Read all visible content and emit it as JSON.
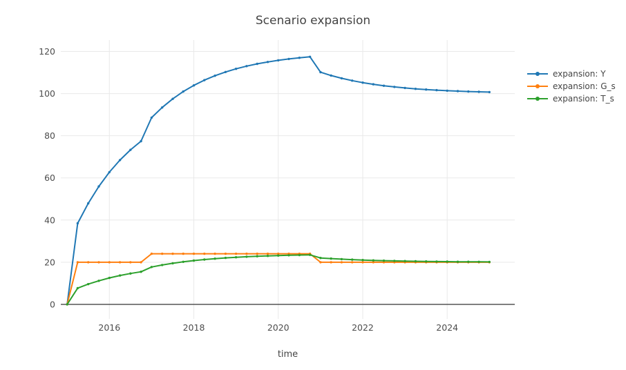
{
  "chart_data": {
    "type": "line",
    "mode": "lines+markers",
    "title": "Scenario expansion",
    "xlabel": "time",
    "ylabel": "",
    "x": [
      2015,
      2015.25,
      2015.5,
      2015.75,
      2016,
      2016.25,
      2016.5,
      2016.75,
      2017,
      2017.25,
      2017.5,
      2017.75,
      2018,
      2018.25,
      2018.5,
      2018.75,
      2019,
      2019.25,
      2019.5,
      2019.75,
      2020,
      2020.25,
      2020.5,
      2020.75,
      2021,
      2021.25,
      2021.5,
      2021.75,
      2022,
      2022.25,
      2022.5,
      2022.75,
      2023,
      2023.25,
      2023.5,
      2023.75,
      2024,
      2024.25,
      2024.5,
      2024.75,
      2025
    ],
    "series": [
      {
        "name": "expansion: Y",
        "color": "#1f77b4",
        "values": [
          0,
          38.46,
          47.93,
          55.94,
          62.72,
          68.45,
          73.31,
          77.41,
          88.58,
          93.41,
          97.5,
          100.97,
          103.89,
          106.37,
          108.47,
          110.24,
          111.74,
          113.01,
          114.09,
          115.0,
          115.77,
          116.42,
          116.97,
          117.44,
          110.14,
          108.58,
          107.26,
          106.14,
          105.2,
          104.4,
          103.72,
          103.15,
          102.66,
          102.25,
          101.91,
          101.61,
          101.37,
          101.16,
          100.98,
          100.83,
          100.7
        ]
      },
      {
        "name": "expansion: G_s",
        "color": "#ff7f0e",
        "values": [
          0,
          20,
          20,
          20,
          20,
          20,
          20,
          20,
          24,
          24,
          24,
          24,
          24,
          24,
          24,
          24,
          24,
          24,
          24,
          24,
          24,
          24,
          24,
          24,
          20,
          20,
          20,
          20,
          20,
          20,
          20,
          20,
          20,
          20,
          20,
          20,
          20,
          20,
          20,
          20,
          20
        ]
      },
      {
        "name": "expansion: T_s",
        "color": "#2ca02c",
        "values": [
          0,
          7.69,
          9.59,
          11.19,
          12.54,
          13.69,
          14.66,
          15.48,
          17.72,
          18.68,
          19.5,
          20.19,
          20.78,
          21.27,
          21.69,
          22.05,
          22.35,
          22.6,
          22.82,
          23.0,
          23.15,
          23.28,
          23.39,
          23.49,
          22.03,
          21.72,
          21.45,
          21.23,
          21.04,
          20.88,
          20.74,
          20.63,
          20.53,
          20.45,
          20.38,
          20.32,
          20.27,
          20.23,
          20.2,
          20.17,
          20.14
        ]
      }
    ],
    "xticks": [
      2016,
      2018,
      2020,
      2022,
      2024
    ],
    "yticks": [
      0,
      20,
      40,
      60,
      80,
      100,
      120
    ],
    "xlim": [
      2014.85,
      2025.6
    ],
    "ylim": [
      -6.9,
      125.4
    ],
    "grid": true,
    "zeroline": true,
    "legend_position": "right-outside"
  },
  "colors": {
    "grid": "#e9e9e9",
    "zeroline": "#444444",
    "tick_text": "#4c4c4c",
    "background": "#ffffff"
  }
}
